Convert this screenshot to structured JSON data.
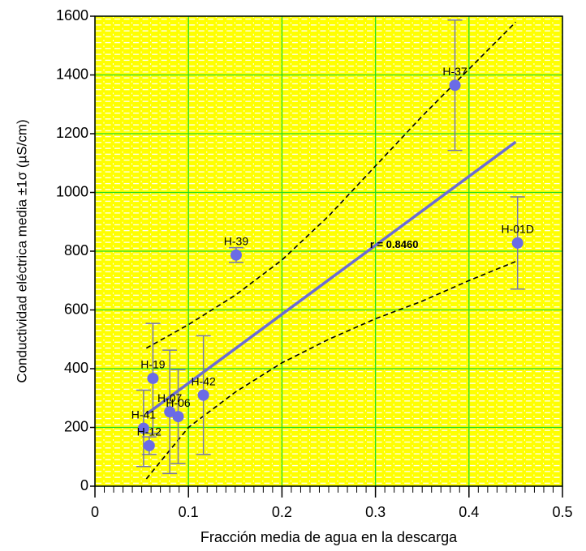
{
  "chart_data": {
    "type": "scatter",
    "xlabel": "Fracción media de agua en la descarga",
    "ylabel": "Conductividad eléctrica media ±1σ  (µS/cm)",
    "xlim": [
      0,
      0.5
    ],
    "ylim": [
      0,
      1600
    ],
    "xticks": [
      0,
      0.1,
      0.2,
      0.3,
      0.4,
      0.5
    ],
    "yticks": [
      0,
      200,
      400,
      600,
      800,
      1000,
      1200,
      1400,
      1600
    ],
    "grid": true,
    "points": {
      "color": "#6b6be6",
      "labels": [
        "H-37",
        "H-01D",
        "H-39",
        "H-42",
        "H-19",
        "H-07",
        "H-06",
        "H-41",
        "H-12"
      ],
      "x": [
        0.385,
        0.452,
        0.151,
        0.116,
        0.062,
        0.08,
        0.089,
        0.052,
        0.058
      ],
      "values": [
        1365,
        828,
        787,
        310,
        367,
        253,
        237,
        197,
        138
      ],
      "errors": [
        222,
        157,
        25,
        202,
        187,
        210,
        160,
        130,
        30
      ]
    },
    "fit": {
      "color": "#6b6bd6",
      "x": [
        0.055,
        0.45
      ],
      "values": [
        245,
        1172
      ]
    },
    "bands": [
      {
        "x": [
          0.055,
          0.1,
          0.15,
          0.2,
          0.25,
          0.3,
          0.35,
          0.4,
          0.45
        ],
        "values": [
          470,
          550,
          650,
          770,
          920,
          1090,
          1260,
          1420,
          1580
        ]
      },
      {
        "x": [
          0.055,
          0.1,
          0.15,
          0.2,
          0.25,
          0.3,
          0.35,
          0.4,
          0.45
        ],
        "values": [
          25,
          200,
          320,
          420,
          500,
          570,
          630,
          700,
          765
        ]
      }
    ],
    "annotation": {
      "text": "r = 0.8460",
      "x": 0.32,
      "y": 820
    }
  }
}
